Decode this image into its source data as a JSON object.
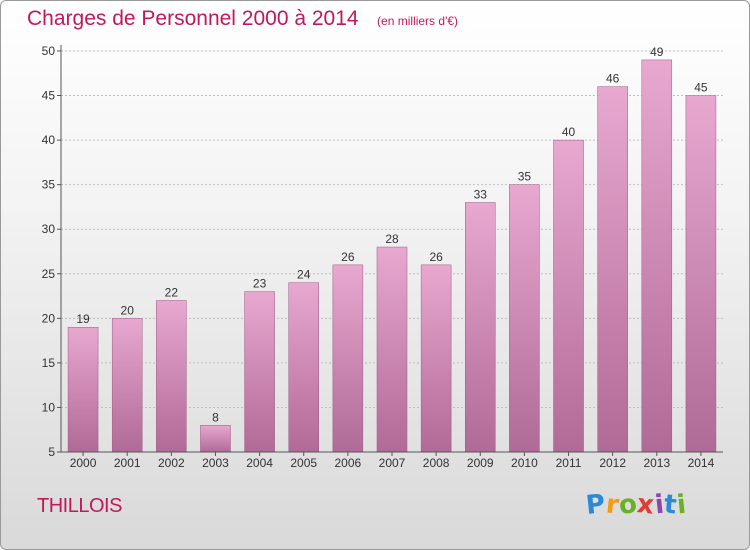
{
  "header": {
    "title": "Charges de Personnel 2000 à 2014",
    "subtitle": "(en milliers d'€)"
  },
  "location": {
    "name": "THILLOIS"
  },
  "brand": {
    "letters": [
      {
        "char": "P",
        "color": "#2b8ad6"
      },
      {
        "char": "r",
        "color": "#f39c12"
      },
      {
        "char": "o",
        "color": "#6ab023"
      },
      {
        "char": "x",
        "color": "#e03c31"
      },
      {
        "char": "i",
        "color": "#8e44ad"
      },
      {
        "char": "t",
        "color": "#2b8ad6"
      },
      {
        "char": "i",
        "color": "#6ab023"
      }
    ]
  },
  "colors": {
    "bar_top": "#e8a8d0",
    "bar_bottom": "#b06a96",
    "axis": "#555555",
    "grid": "#bfbfbf",
    "title": "#c2185b"
  },
  "chart_data": {
    "type": "bar",
    "title": "Charges de Personnel 2000 à 2014",
    "subtitle": "(en milliers d'€)",
    "categories": [
      "2000",
      "2001",
      "2002",
      "2003",
      "2004",
      "2005",
      "2006",
      "2007",
      "2008",
      "2009",
      "2010",
      "2011",
      "2012",
      "2013",
      "2014"
    ],
    "values": [
      19,
      20,
      22,
      8,
      23,
      24,
      26,
      28,
      26,
      33,
      35,
      40,
      46,
      49,
      45
    ],
    "ylim": [
      5,
      50
    ],
    "yticks": [
      5,
      10,
      15,
      20,
      25,
      30,
      35,
      40,
      45,
      50
    ],
    "grid": true,
    "data_labels": true
  }
}
